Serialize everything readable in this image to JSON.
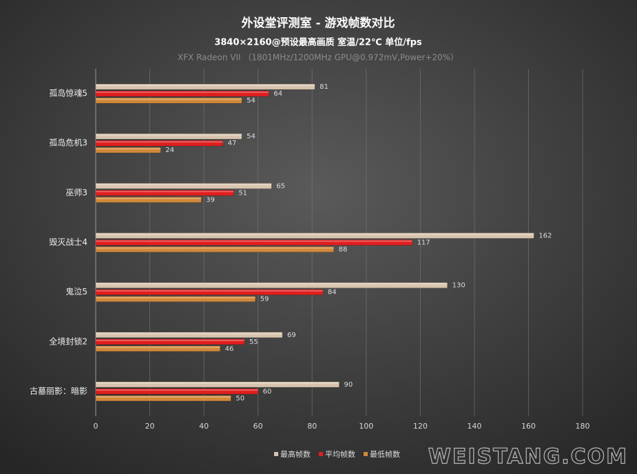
{
  "chart_data": {
    "type": "hbar",
    "title": "外设堂评测室 -  游戏帧数对比",
    "subtitle": "3840×2160@预设最高画质 室温/22℃  单位/fps",
    "caption": "XFX Radeon VII （1801MHz/1200MHz  GPU@0.972mV,Power+20%）",
    "watermark": "WEISTANG.COM",
    "categories": [
      "孤岛惊魂5",
      "孤岛危机3",
      "巫师3",
      "毁灭战士4",
      "鬼泣5",
      "全境封锁2",
      "古墓丽影：暗影"
    ],
    "series": [
      {
        "name": "最高帧数",
        "color": "#d8c4ae",
        "values": [
          81,
          54,
          65,
          162,
          130,
          69,
          90
        ]
      },
      {
        "name": "平均帧数",
        "color": "#e01e1e",
        "values": [
          64,
          47,
          51,
          117,
          84,
          55,
          60
        ]
      },
      {
        "name": "最低帧数",
        "color": "#d0883a",
        "values": [
          54,
          24,
          39,
          88,
          59,
          46,
          50
        ]
      }
    ],
    "xlim": [
      0,
      180
    ],
    "xticks": [
      0,
      20,
      40,
      60,
      80,
      100,
      120,
      140,
      160,
      180
    ],
    "grid": true,
    "legend": "bottom-right"
  }
}
